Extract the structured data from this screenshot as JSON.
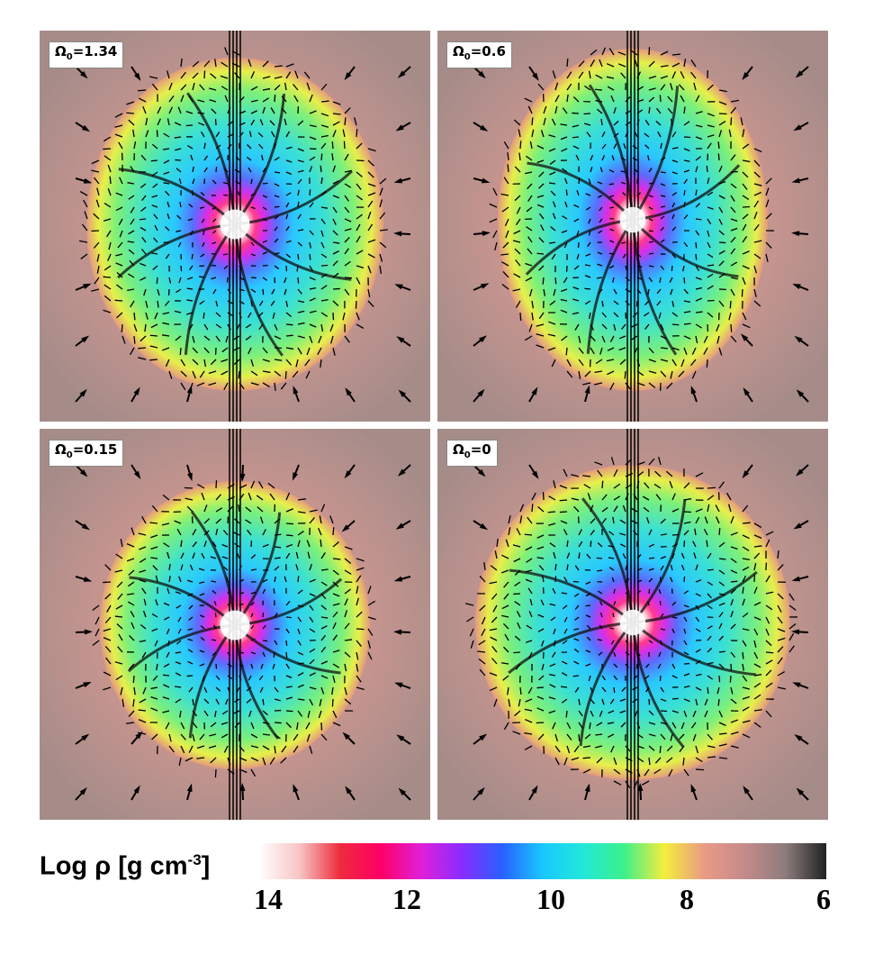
{
  "panels": [
    {
      "omega_symbol": "Ω",
      "subscript": "0",
      "value_text": "=1.34",
      "variant": "round"
    },
    {
      "omega_symbol": "Ω",
      "subscript": "0",
      "value_text": "=0.6",
      "variant": "tall"
    },
    {
      "omega_symbol": "Ω",
      "subscript": "0",
      "value_text": "=0.15",
      "variant": "lobed"
    },
    {
      "omega_symbol": "Ω",
      "subscript": "0",
      "value_text": "=0",
      "variant": "wide"
    }
  ],
  "colorbar": {
    "title_prefix": "Log ρ [g cm",
    "title_exponent": "-3",
    "title_suffix": "]",
    "ticks": [
      "14",
      "12",
      "10",
      "8",
      "6"
    ],
    "stops": [
      "#ffffff",
      "#f7c4c4",
      "#ee2a3c",
      "#ff0066",
      "#e020d8",
      "#8a2cff",
      "#2860ff",
      "#19c8ff",
      "#22e8d8",
      "#3cf08a",
      "#f4ee3c",
      "#e99a86",
      "#c48a8a",
      "#8c7c7c",
      "#222222"
    ]
  }
}
